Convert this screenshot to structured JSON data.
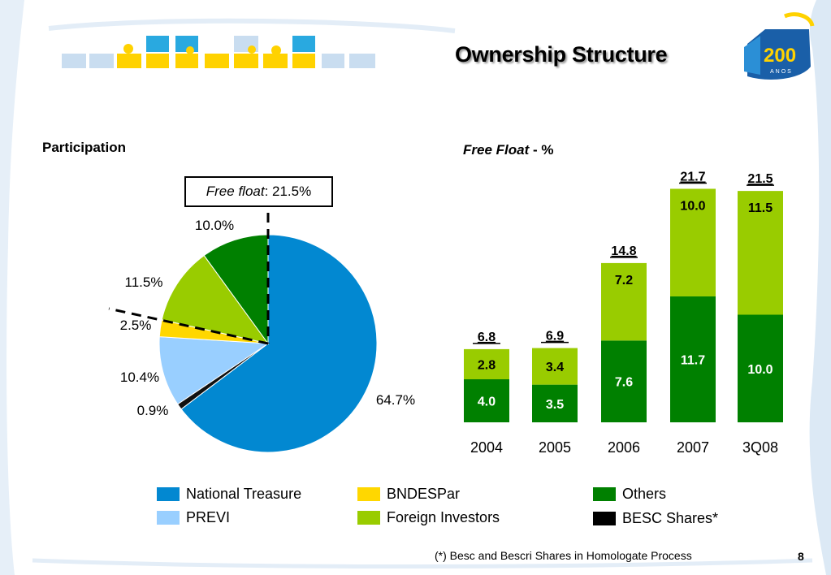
{
  "slide": {
    "title": "Ownership Structure",
    "page_number": "8",
    "footnote": "(*) Besc and Bescri Shares in Homologate Process",
    "logo_text": "200",
    "logo_subtext": "ANOS"
  },
  "pie": {
    "heading": "Participation",
    "free_float_label": "Free float",
    "free_float_value": ": 21.5%"
  },
  "bars": {
    "heading_italic": "Free Float",
    "heading_suffix": " - %"
  },
  "legend": [
    {
      "label": "National Treasure",
      "color": "#0288d1"
    },
    {
      "label": "PREVI",
      "color": "#99cfff"
    },
    {
      "label": "BNDESPar",
      "color": "#ffd700"
    },
    {
      "label": "Foreign Investors",
      "color": "#99cc00"
    },
    {
      "label": "Others",
      "color": "#008000"
    },
    {
      "label": "BESC Shares*",
      "color": "#000000"
    }
  ],
  "chart_data": [
    {
      "type": "pie",
      "title": "Participation",
      "slices": [
        {
          "name": "National Treasure",
          "value": 64.7,
          "label": "64.7%",
          "color": "#0288d1"
        },
        {
          "name": "BESC Shares*",
          "value": 0.9,
          "label": "0.9%",
          "color": "#111111"
        },
        {
          "name": "PREVI",
          "value": 10.4,
          "label": "10.4%",
          "color": "#99cfff"
        },
        {
          "name": "BNDESPar",
          "value": 2.5,
          "label": "2.5%",
          "color": "#ffd700"
        },
        {
          "name": "Foreign Investors",
          "value": 11.5,
          "label": "11.5%",
          "color": "#99cc00"
        },
        {
          "name": "Others",
          "value": 10.0,
          "label": "10.0%",
          "color": "#008000"
        }
      ],
      "annotation": "Free float: 21.5%"
    },
    {
      "type": "bar",
      "stacked": true,
      "title": "Free Float - %",
      "categories": [
        "2004",
        "2005",
        "2006",
        "2007",
        "3Q08"
      ],
      "series": [
        {
          "name": "Others",
          "values": [
            4.0,
            3.5,
            7.6,
            11.7,
            10.0
          ],
          "labels": [
            "4.0",
            "3.5",
            "7.6",
            "11.7",
            "10.0"
          ],
          "color": "#008000",
          "label_color": "#ffffff"
        },
        {
          "name": "Foreign Investors",
          "values": [
            2.8,
            3.4,
            7.2,
            10.0,
            11.5
          ],
          "labels": [
            "2.8",
            "3.4",
            "7.2",
            "10.0",
            "11.5"
          ],
          "color": "#99cc00",
          "label_color": "#000000"
        }
      ],
      "totals": [
        "6.8",
        "6.9",
        "14.8",
        "21.7",
        "21.5"
      ],
      "total_values": [
        6.8,
        6.9,
        14.8,
        21.7,
        21.5
      ],
      "ylim": [
        0,
        23
      ]
    }
  ]
}
